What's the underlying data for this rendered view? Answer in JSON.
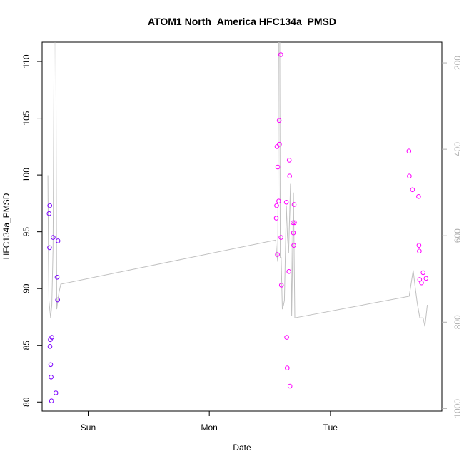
{
  "chart_data": {
    "type": "scatter",
    "title": "ATOM1 North_America HFC134a_PMSD",
    "xlabel": "Date",
    "ylabel": "HFC134a_PMSD",
    "x_ticks": [
      {
        "label": "Sun",
        "day": 1.0
      },
      {
        "label": "Mon",
        "day": 2.0
      },
      {
        "label": "Tue",
        "day": 3.0
      }
    ],
    "xlim": [
      0.62,
      3.92
    ],
    "ylim": [
      79.2,
      111.7
    ],
    "y_ticks": [
      80,
      85,
      90,
      95,
      100,
      105,
      110
    ],
    "y2_ticks": [
      200,
      400,
      600,
      800,
      1000
    ],
    "y2lim": [
      1006,
      152
    ],
    "grid": false,
    "series": [
      {
        "color": "#7b00ff",
        "points": [
          {
            "day": 0.678,
            "value": 96.6
          },
          {
            "day": 0.681,
            "value": 93.6
          },
          {
            "day": 0.683,
            "value": 97.3
          },
          {
            "day": 0.685,
            "value": 84.9
          },
          {
            "day": 0.688,
            "value": 85.5
          },
          {
            "day": 0.691,
            "value": 83.3
          },
          {
            "day": 0.694,
            "value": 82.2
          },
          {
            "day": 0.697,
            "value": 80.1
          },
          {
            "day": 0.7,
            "value": 85.7
          },
          {
            "day": 0.711,
            "value": 94.5
          },
          {
            "day": 0.733,
            "value": 80.8
          },
          {
            "day": 0.744,
            "value": 91.0
          },
          {
            "day": 0.748,
            "value": 89.0
          },
          {
            "day": 0.751,
            "value": 94.2
          }
        ]
      },
      {
        "color": "#ff00ff",
        "points": [
          {
            "day": 2.553,
            "value": 96.2
          },
          {
            "day": 2.556,
            "value": 97.3
          },
          {
            "day": 2.559,
            "value": 102.5
          },
          {
            "day": 2.562,
            "value": 93.0
          },
          {
            "day": 2.565,
            "value": 100.7
          },
          {
            "day": 2.573,
            "value": 97.7
          },
          {
            "day": 2.577,
            "value": 104.8
          },
          {
            "day": 2.579,
            "value": 102.7
          },
          {
            "day": 2.59,
            "value": 110.6
          },
          {
            "day": 2.592,
            "value": 94.5
          },
          {
            "day": 2.595,
            "value": 90.3
          },
          {
            "day": 2.636,
            "value": 97.6
          },
          {
            "day": 2.639,
            "value": 85.7
          },
          {
            "day": 2.643,
            "value": 83.0
          },
          {
            "day": 2.657,
            "value": 91.5
          },
          {
            "day": 2.66,
            "value": 101.3
          },
          {
            "day": 2.663,
            "value": 99.9
          },
          {
            "day": 2.666,
            "value": 81.4
          },
          {
            "day": 2.691,
            "value": 95.8
          },
          {
            "day": 2.694,
            "value": 94.9
          },
          {
            "day": 2.697,
            "value": 93.8
          },
          {
            "day": 2.7,
            "value": 97.4
          },
          {
            "day": 2.703,
            "value": 95.8
          },
          {
            "day": 3.648,
            "value": 102.1
          },
          {
            "day": 3.651,
            "value": 99.9
          },
          {
            "day": 3.678,
            "value": 98.7
          },
          {
            "day": 3.728,
            "value": 98.1
          },
          {
            "day": 3.731,
            "value": 93.8
          },
          {
            "day": 3.734,
            "value": 93.3
          },
          {
            "day": 3.737,
            "value": 90.8
          },
          {
            "day": 3.752,
            "value": 90.5
          },
          {
            "day": 3.765,
            "value": 91.4
          },
          {
            "day": 3.789,
            "value": 90.9
          }
        ]
      }
    ],
    "line": {
      "color": "#c0c0c0",
      "axis": "right",
      "points": [
        {
          "day": 0.668,
          "y2": 460
        },
        {
          "day": 0.672,
          "y2": 650
        },
        {
          "day": 0.676,
          "y2": 750
        },
        {
          "day": 0.69,
          "y2": 790
        },
        {
          "day": 0.7,
          "y2": 760
        },
        {
          "day": 0.71,
          "y2": 630
        },
        {
          "day": 0.72,
          "y2": 80
        },
        {
          "day": 0.733,
          "y2": 150
        },
        {
          "day": 0.741,
          "y2": 770
        },
        {
          "day": 0.749,
          "y2": 750
        },
        {
          "day": 0.76,
          "y2": 730
        },
        {
          "day": 0.774,
          "y2": 712
        },
        {
          "day": 2.548,
          "y2": 610
        },
        {
          "day": 2.556,
          "y2": 640
        },
        {
          "day": 2.565,
          "y2": 660
        },
        {
          "day": 2.574,
          "y2": 50
        },
        {
          "day": 2.582,
          "y2": 150
        },
        {
          "day": 2.586,
          "y2": 650
        },
        {
          "day": 2.593,
          "y2": 650
        },
        {
          "day": 2.603,
          "y2": 770
        },
        {
          "day": 2.613,
          "y2": 760
        },
        {
          "day": 2.62,
          "y2": 750
        },
        {
          "day": 2.636,
          "y2": 530
        },
        {
          "day": 2.645,
          "y2": 600
        },
        {
          "day": 2.655,
          "y2": 640
        },
        {
          "day": 2.67,
          "y2": 480
        },
        {
          "day": 2.68,
          "y2": 785
        },
        {
          "day": 2.695,
          "y2": 500
        },
        {
          "day": 2.706,
          "y2": 790
        },
        {
          "day": 3.65,
          "y2": 740
        },
        {
          "day": 3.683,
          "y2": 680
        },
        {
          "day": 3.7,
          "y2": 720
        },
        {
          "day": 3.716,
          "y2": 755
        },
        {
          "day": 3.738,
          "y2": 790
        },
        {
          "day": 3.765,
          "y2": 790
        },
        {
          "day": 3.78,
          "y2": 810
        },
        {
          "day": 3.8,
          "y2": 760
        }
      ]
    }
  }
}
